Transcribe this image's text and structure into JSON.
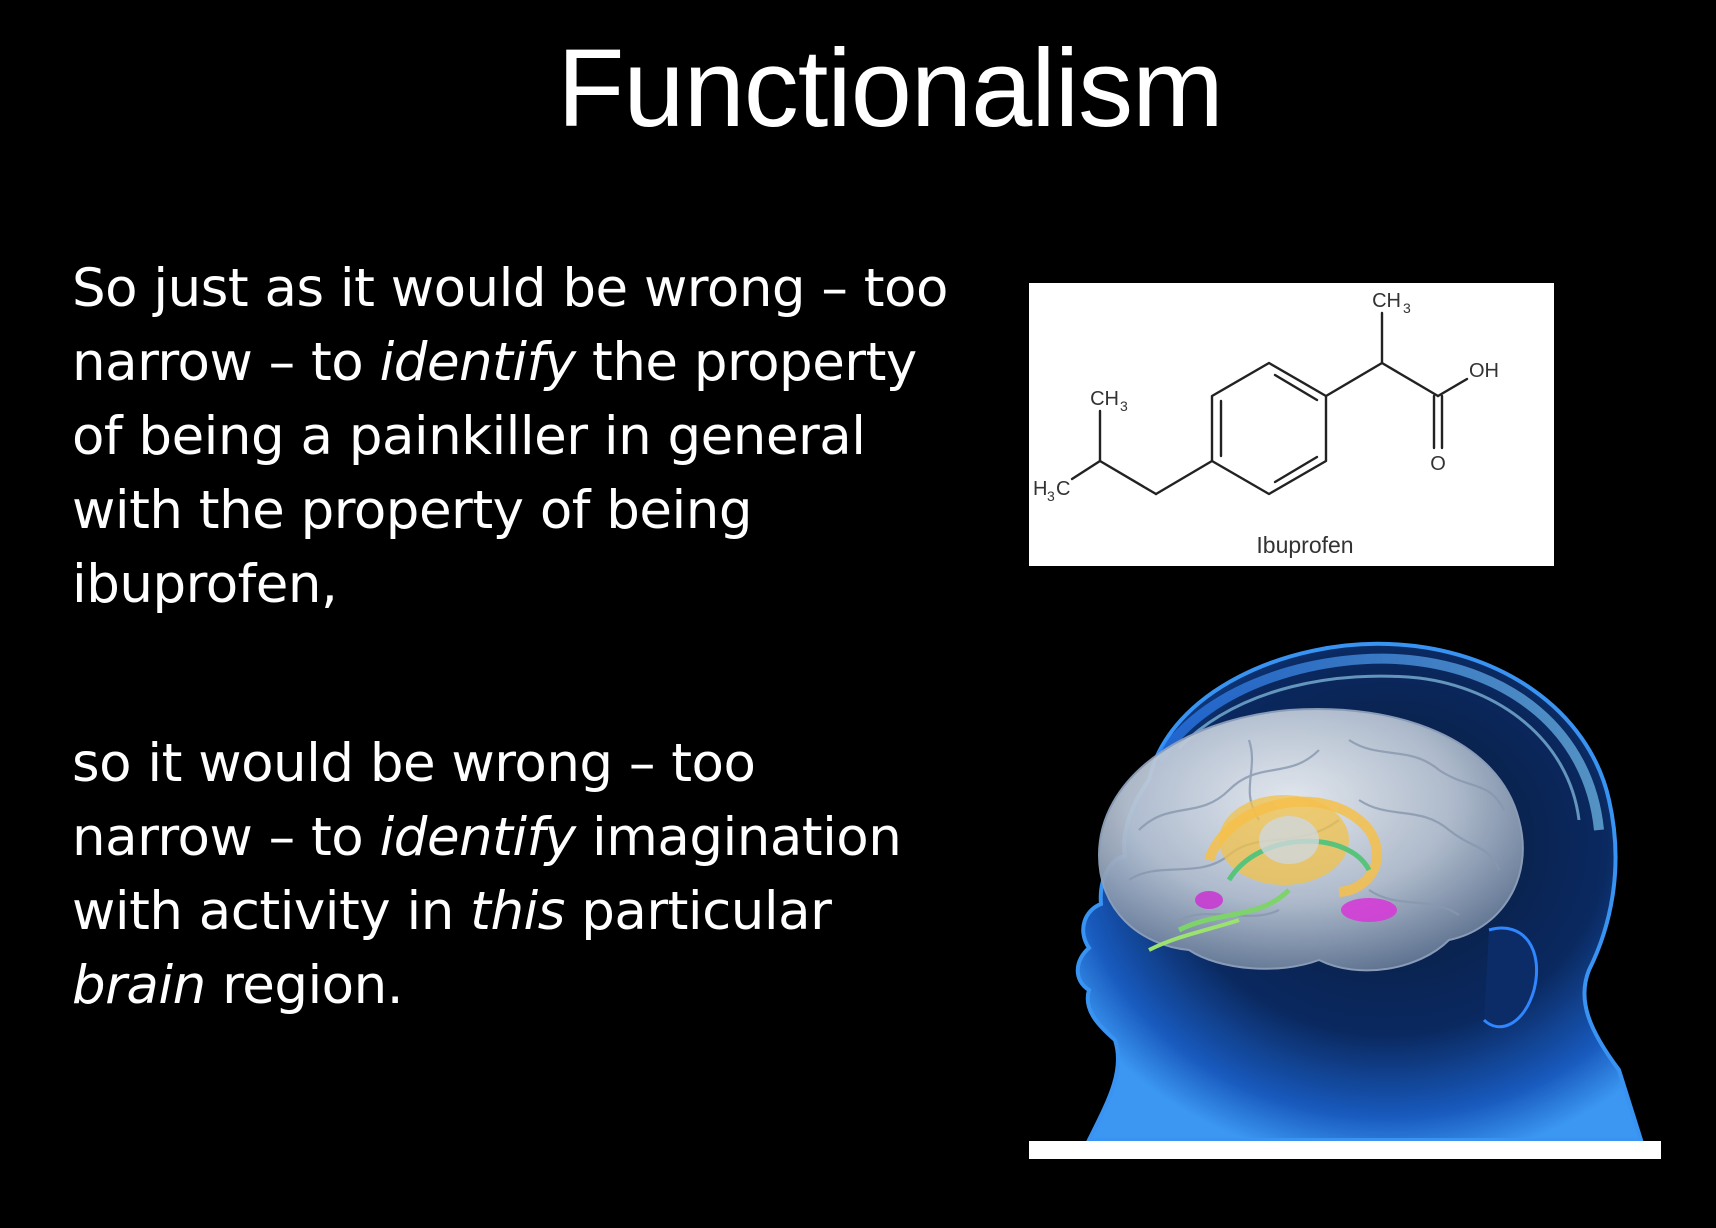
{
  "slide": {
    "title": "Functionalism",
    "paragraph1": {
      "part1": "So just as it would be wrong – too narrow – to ",
      "em1": "identify",
      "part2": " the property of being a painkiller in general with the property of being ibuprofen,"
    },
    "paragraph2": {
      "part1": "so it would be wrong – too narrow – to ",
      "em1": "identify",
      "part2": " imagination with activity in ",
      "em2": "this",
      "part3": " particular ",
      "em3": "brain",
      "part4": " region."
    }
  },
  "molecule": {
    "label_ch3_top": "CH",
    "label_ch3_top_sub": "3",
    "label_oh": "OH",
    "label_o": "O",
    "label_ch3_left": "CH",
    "label_ch3_left_sub": "3",
    "label_h3c_h": "H",
    "label_h3c_sub": "3",
    "label_h3c_c": "C",
    "caption": "Ibuprofen"
  },
  "colors": {
    "background": "#000000",
    "text": "#ffffff",
    "head_glow": "#1e6fd9",
    "brain": "#c9d3e0"
  },
  "icons": {
    "molecule": "ibuprofen-structure-diagram",
    "brain": "brain-in-head-illustration"
  }
}
